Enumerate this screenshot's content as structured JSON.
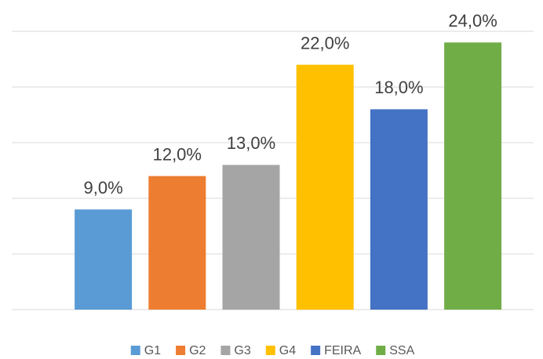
{
  "chart_data": {
    "type": "bar",
    "categories": [
      "G1",
      "G2",
      "G3",
      "G4",
      "FEIRA",
      "SSA"
    ],
    "values": [
      9,
      12,
      13,
      22,
      18,
      24
    ],
    "value_labels": [
      "9,0%",
      "12,0%",
      "13,0%",
      "22,0%",
      "18,0%",
      "24,0%"
    ],
    "colors": [
      "#5b9bd5",
      "#ed7d31",
      "#a5a5a5",
      "#ffc000",
      "#4472c4",
      "#70ad47"
    ],
    "ylim": [
      0,
      25
    ],
    "yticks": [
      0,
      5,
      10,
      15,
      20,
      25
    ],
    "grid": true,
    "legend": "bottom"
  }
}
